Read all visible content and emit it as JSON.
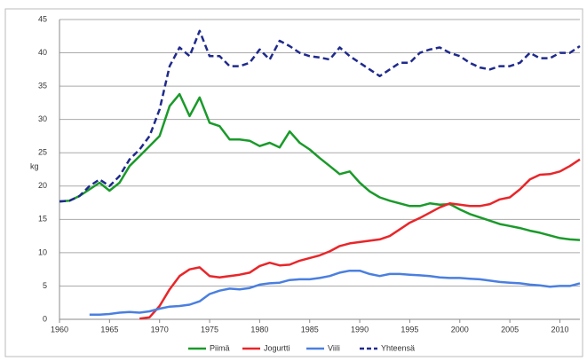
{
  "chart_data": {
    "type": "line",
    "ylabel": "kg",
    "x": [
      1960,
      1961,
      1962,
      1963,
      1964,
      1965,
      1966,
      1967,
      1968,
      1969,
      1970,
      1971,
      1972,
      1973,
      1974,
      1975,
      1976,
      1977,
      1978,
      1979,
      1980,
      1981,
      1982,
      1983,
      1984,
      1985,
      1986,
      1987,
      1988,
      1989,
      1990,
      1991,
      1992,
      1993,
      1994,
      1995,
      1996,
      1997,
      1998,
      1999,
      2000,
      2001,
      2002,
      2003,
      2004,
      2005,
      2006,
      2007,
      2008,
      2009,
      2010,
      2011,
      2012
    ],
    "xlim": [
      1960,
      2012
    ],
    "xticks": [
      1960,
      1965,
      1970,
      1975,
      1980,
      1985,
      1990,
      1995,
      2000,
      2005,
      2010
    ],
    "ylim": [
      0,
      45
    ],
    "yticks": [
      0,
      5,
      10,
      15,
      20,
      25,
      30,
      35,
      40,
      45
    ],
    "grid": true,
    "legend": "bottom",
    "series": [
      {
        "name": "Piimä",
        "color": "#1a9a2a",
        "dash": false,
        "values": [
          17.7,
          17.8,
          18.5,
          19.5,
          20.5,
          19.3,
          20.5,
          23,
          24.5,
          26,
          27.5,
          32,
          33.8,
          30.5,
          33.3,
          29.5,
          29,
          27,
          27,
          26.8,
          26,
          26.5,
          25.8,
          28.2,
          26.5,
          25.5,
          24.2,
          23,
          21.8,
          22.2,
          20.5,
          19.2,
          18.3,
          17.8,
          17.4,
          17,
          17,
          17.4,
          17.2,
          17.3,
          16.5,
          15.8,
          15.3,
          14.8,
          14.3,
          14,
          13.7,
          13.3,
          13,
          12.6,
          12.2,
          12,
          11.9
        ]
      },
      {
        "name": "Jogurtti",
        "color": "#e8262a",
        "dash": false,
        "values": [
          null,
          null,
          null,
          null,
          null,
          null,
          null,
          null,
          0.1,
          0.3,
          2,
          4.5,
          6.5,
          7.5,
          7.8,
          6.5,
          6.3,
          6.5,
          6.7,
          7,
          8,
          8.5,
          8.1,
          8.2,
          8.8,
          9.2,
          9.6,
          10.2,
          11,
          11.4,
          11.6,
          11.8,
          12,
          12.5,
          13.5,
          14.5,
          15.2,
          16,
          16.8,
          17.4,
          17.2,
          17,
          17,
          17.3,
          18,
          18.3,
          19.5,
          21,
          21.7,
          21.8,
          22.2,
          23,
          24
        ]
      },
      {
        "name": "Viili",
        "color": "#4a7fe0",
        "dash": false,
        "values": [
          null,
          null,
          null,
          0.7,
          0.7,
          0.8,
          1,
          1.1,
          1,
          1.2,
          1.6,
          1.9,
          2,
          2.2,
          2.7,
          3.8,
          4.3,
          4.6,
          4.5,
          4.7,
          5.2,
          5.4,
          5.5,
          5.9,
          6,
          6,
          6.2,
          6.5,
          7,
          7.3,
          7.3,
          6.8,
          6.5,
          6.8,
          6.8,
          6.7,
          6.6,
          6.5,
          6.3,
          6.2,
          6.2,
          6.1,
          6,
          5.8,
          5.6,
          5.5,
          5.4,
          5.2,
          5.1,
          4.9,
          5,
          5,
          5.4
        ]
      },
      {
        "name": "Yhteensä",
        "color": "#1f2a8c",
        "dash": true,
        "values": [
          17.7,
          17.8,
          18.5,
          20,
          21,
          20,
          21.5,
          24,
          25.5,
          27.5,
          31.5,
          38,
          40.8,
          39.5,
          43.3,
          39.5,
          39.5,
          38,
          38,
          38.5,
          40.5,
          39,
          41.8,
          41,
          40,
          39.5,
          39.3,
          39,
          40.8,
          39.5,
          38.5,
          37.5,
          36.5,
          37.5,
          38.5,
          38.5,
          40,
          40.5,
          40.8,
          40,
          39.5,
          38.5,
          37.8,
          37.5,
          38,
          38,
          38.5,
          40,
          39.2,
          39.2,
          40,
          40,
          41
        ]
      }
    ]
  }
}
